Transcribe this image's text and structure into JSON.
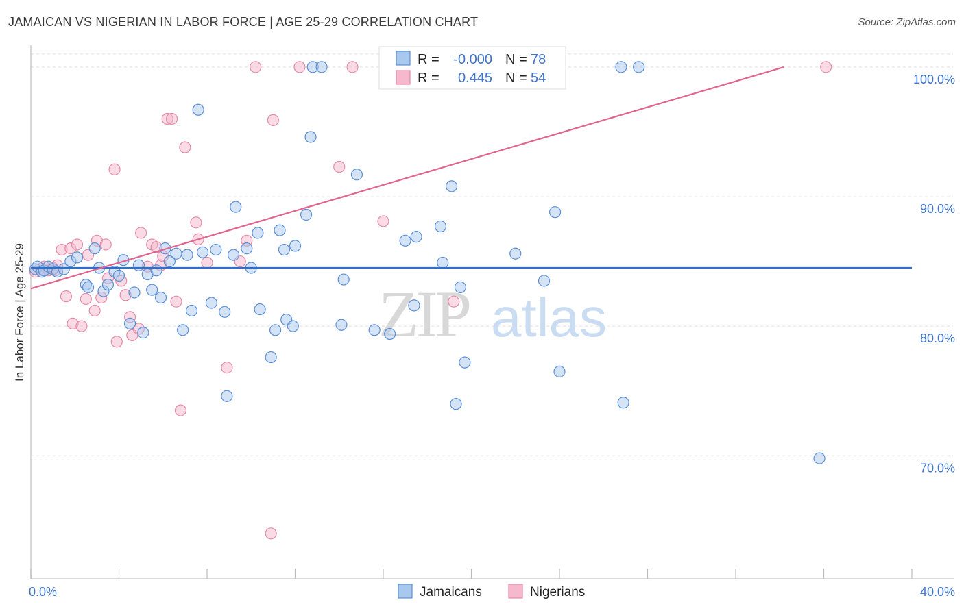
{
  "header": {
    "title": "JAMAICAN VS NIGERIAN IN LABOR FORCE | AGE 25-29 CORRELATION CHART",
    "source": "Source: ZipAtlas.com"
  },
  "watermark": {
    "zip": "ZIP",
    "atlas": "atlas"
  },
  "colors": {
    "blue_fill": "#a9c8ee",
    "blue_stroke": "#5a8fd6",
    "blue_line": "#2f6fc8",
    "pink_fill": "#f5b8cc",
    "pink_stroke": "#e58aa8",
    "pink_line": "#e0648f",
    "tick_text": "#3f74c9",
    "grid": "#dddddd"
  },
  "legend": {
    "rows": [
      {
        "r_label": "R =",
        "r_value": "-0.000",
        "n_label": "N =",
        "n_value": "78"
      },
      {
        "r_label": "R =",
        "r_value": "0.445",
        "n_label": "N =",
        "n_value": "54"
      }
    ]
  },
  "bottom_legend": [
    "Jamaicans",
    "Nigerians"
  ],
  "chart_data": {
    "type": "scatter",
    "title": "JAMAICAN VS NIGERIAN IN LABOR FORCE | AGE 25-29 CORRELATION CHART",
    "xlabel": "",
    "ylabel": "In Labor Force | Age 25-29",
    "xlim": [
      0,
      40
    ],
    "ylim": [
      60.5,
      102
    ],
    "x_tick_labels": [
      "0.0%",
      "40.0%"
    ],
    "y_ticks": [
      70,
      80,
      90,
      100
    ],
    "y_tick_labels": [
      "70.0%",
      "80.0%",
      "90.0%",
      "100.0%"
    ],
    "grid": true,
    "legend_position": "top-center",
    "series": [
      {
        "name": "Jamaicans",
        "r": -0.0,
        "n": 78,
        "trend": [
          [
            0,
            84.5
          ],
          [
            40,
            84.5
          ]
        ],
        "points": [
          [
            0.2,
            84.4
          ],
          [
            0.3,
            84.6
          ],
          [
            0.5,
            84.2
          ],
          [
            0.6,
            84.3
          ],
          [
            0.8,
            84.6
          ],
          [
            1.0,
            84.4
          ],
          [
            1.2,
            84.2
          ],
          [
            1.5,
            84.4
          ],
          [
            1.8,
            85.0
          ],
          [
            2.1,
            85.3
          ],
          [
            2.5,
            83.2
          ],
          [
            2.6,
            83.0
          ],
          [
            2.9,
            86.0
          ],
          [
            3.1,
            84.5
          ],
          [
            3.3,
            82.7
          ],
          [
            3.5,
            83.2
          ],
          [
            3.8,
            84.2
          ],
          [
            4.0,
            83.9
          ],
          [
            4.2,
            85.1
          ],
          [
            4.5,
            80.2
          ],
          [
            4.7,
            82.6
          ],
          [
            4.9,
            84.7
          ],
          [
            5.1,
            79.5
          ],
          [
            5.3,
            84.0
          ],
          [
            5.5,
            82.8
          ],
          [
            5.7,
            84.3
          ],
          [
            5.9,
            82.2
          ],
          [
            6.1,
            86.0
          ],
          [
            6.3,
            85.0
          ],
          [
            6.6,
            85.6
          ],
          [
            6.9,
            79.7
          ],
          [
            7.1,
            85.5
          ],
          [
            7.3,
            81.2
          ],
          [
            7.6,
            96.7
          ],
          [
            7.8,
            85.7
          ],
          [
            8.2,
            81.8
          ],
          [
            8.4,
            85.9
          ],
          [
            8.8,
            81.1
          ],
          [
            8.9,
            74.6
          ],
          [
            9.2,
            85.5
          ],
          [
            9.3,
            89.2
          ],
          [
            9.8,
            86.0
          ],
          [
            10.0,
            84.5
          ],
          [
            10.3,
            87.2
          ],
          [
            10.4,
            81.3
          ],
          [
            10.9,
            77.6
          ],
          [
            11.1,
            79.7
          ],
          [
            11.3,
            87.4
          ],
          [
            11.5,
            85.9
          ],
          [
            11.6,
            80.5
          ],
          [
            11.9,
            80.0
          ],
          [
            12.0,
            86.2
          ],
          [
            12.5,
            88.6
          ],
          [
            12.7,
            94.6
          ],
          [
            12.8,
            100.0
          ],
          [
            13.2,
            100.0
          ],
          [
            14.1,
            80.1
          ],
          [
            14.2,
            83.6
          ],
          [
            14.8,
            91.7
          ],
          [
            15.6,
            79.7
          ],
          [
            16.3,
            79.4
          ],
          [
            17.0,
            86.6
          ],
          [
            17.4,
            81.6
          ],
          [
            17.5,
            86.9
          ],
          [
            18.6,
            87.7
          ],
          [
            18.7,
            84.9
          ],
          [
            19.1,
            90.8
          ],
          [
            19.3,
            74.0
          ],
          [
            19.5,
            83.0
          ],
          [
            19.7,
            77.2
          ],
          [
            22.0,
            85.6
          ],
          [
            23.3,
            83.5
          ],
          [
            23.8,
            88.8
          ],
          [
            24.0,
            76.5
          ],
          [
            26.8,
            100.0
          ],
          [
            26.9,
            74.1
          ],
          [
            27.6,
            100.0
          ],
          [
            35.8,
            69.8
          ]
        ]
      },
      {
        "name": "Nigerians",
        "r": 0.445,
        "n": 54,
        "trend": [
          [
            0,
            82.9
          ],
          [
            34.2,
            100.0
          ]
        ],
        "points": [
          [
            0.2,
            84.2
          ],
          [
            0.4,
            84.4
          ],
          [
            0.6,
            84.6
          ],
          [
            0.8,
            84.3
          ],
          [
            1.0,
            84.5
          ],
          [
            1.1,
            84.3
          ],
          [
            1.2,
            84.7
          ],
          [
            1.4,
            85.9
          ],
          [
            1.6,
            82.3
          ],
          [
            1.8,
            86.0
          ],
          [
            1.9,
            80.2
          ],
          [
            2.1,
            86.3
          ],
          [
            2.3,
            80.0
          ],
          [
            2.5,
            82.1
          ],
          [
            2.6,
            85.5
          ],
          [
            2.9,
            81.2
          ],
          [
            3.0,
            86.6
          ],
          [
            3.2,
            82.2
          ],
          [
            3.4,
            86.3
          ],
          [
            3.5,
            83.7
          ],
          [
            3.8,
            92.1
          ],
          [
            3.9,
            78.8
          ],
          [
            4.1,
            83.5
          ],
          [
            4.3,
            82.4
          ],
          [
            4.5,
            80.7
          ],
          [
            4.6,
            79.3
          ],
          [
            4.9,
            79.8
          ],
          [
            5.0,
            87.2
          ],
          [
            5.3,
            84.6
          ],
          [
            5.5,
            86.3
          ],
          [
            5.7,
            86.1
          ],
          [
            5.9,
            84.7
          ],
          [
            6.0,
            85.4
          ],
          [
            6.2,
            96.0
          ],
          [
            6.4,
            96.0
          ],
          [
            6.6,
            81.9
          ],
          [
            6.8,
            73.5
          ],
          [
            7.0,
            93.8
          ],
          [
            7.5,
            88.0
          ],
          [
            7.6,
            86.7
          ],
          [
            8.0,
            84.9
          ],
          [
            8.9,
            76.8
          ],
          [
            9.5,
            85.0
          ],
          [
            9.8,
            86.6
          ],
          [
            10.2,
            100.0
          ],
          [
            10.9,
            64.0
          ],
          [
            11.0,
            95.9
          ],
          [
            12.2,
            100.0
          ],
          [
            14.0,
            92.3
          ],
          [
            14.6,
            100.0
          ],
          [
            16.0,
            88.1
          ],
          [
            19.2,
            81.9
          ],
          [
            19.9,
            100.0
          ],
          [
            36.1,
            100.0
          ]
        ]
      }
    ]
  }
}
